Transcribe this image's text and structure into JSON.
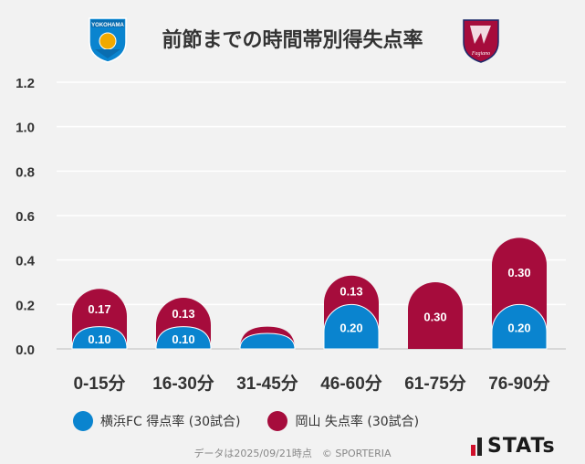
{
  "title": "前節までの時間帯別得失点率",
  "colors": {
    "yokohama": "#0a84cf",
    "okayama": "#a60c3c",
    "grid": "#ffffff",
    "background": "#f2f2f2"
  },
  "logos": {
    "left": {
      "name": "yokohama-fc-emblem",
      "text": "YOKOHAMA"
    },
    "right": {
      "name": "fagiano-okayama-emblem",
      "text": "Fagiano"
    }
  },
  "chart_data": {
    "type": "bar",
    "title": "前節までの時間帯別得失点率",
    "categories": [
      "0-15分",
      "16-30分",
      "31-45分",
      "46-60分",
      "61-75分",
      "76-90分"
    ],
    "yticks": [
      "0.0",
      "0.2",
      "0.4",
      "0.6",
      "0.8",
      "1.0",
      "1.2"
    ],
    "ylim": [
      0,
      1.2
    ],
    "grid": true,
    "series": [
      {
        "name": "横浜FC 得点率 (30試合)",
        "values": [
          0.1,
          0.1,
          0.07,
          0.2,
          0.0,
          0.2
        ],
        "labels": [
          "0.10",
          "0.10",
          "",
          "0.20",
          "",
          "0.20"
        ]
      },
      {
        "name": "岡山 失点率 (30試合)",
        "values": [
          0.17,
          0.13,
          0.03,
          0.13,
          0.3,
          0.3
        ],
        "labels": [
          "0.17",
          "0.13",
          "",
          "0.13",
          "0.30",
          "0.30"
        ]
      }
    ]
  },
  "legend": {
    "items": [
      "横浜FC 得点率 (30試合)",
      "岡山 失点率 (30試合)"
    ]
  },
  "footer": {
    "note": "データは2025/09/21時点　© SPORTERIA",
    "brand": "STATs"
  }
}
